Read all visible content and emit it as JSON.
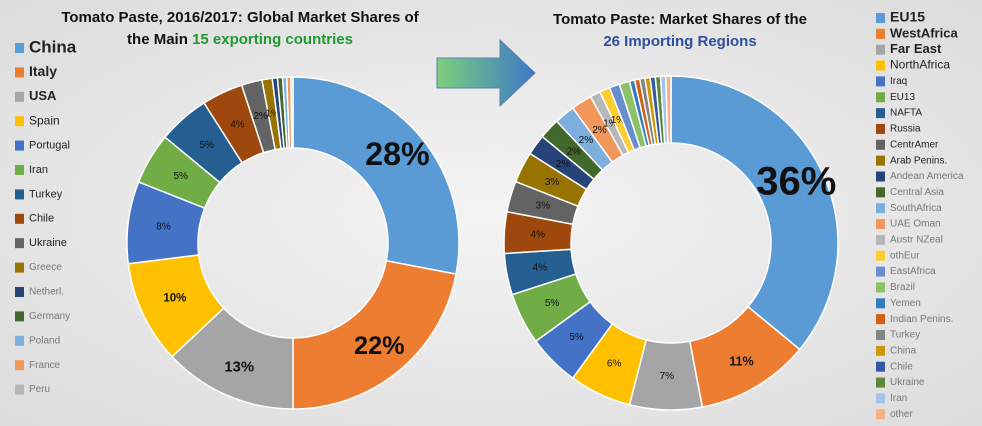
{
  "chart_data": [
    {
      "type": "donut",
      "title": [
        "Tomato Paste, 2016/2017: Global Market Shares of",
        "the Main",
        "15 exporting countries"
      ],
      "categories": [
        "China",
        "Italy",
        "USA",
        "Spain",
        "Portugal",
        "Iran",
        "Turkey",
        "Chile",
        "Ukraine",
        "Greece",
        "Netherl.",
        "Germany",
        "Poland",
        "France",
        "Peru"
      ],
      "values": [
        28,
        22,
        13,
        10,
        8,
        5,
        5,
        4,
        2,
        1,
        0.5,
        0.5,
        0.4,
        0.4,
        0.2
      ],
      "value_labels": [
        "28%",
        "22%",
        "13%",
        "10%",
        "8%",
        "5%",
        "5%",
        "4%",
        "2%",
        "1%",
        null,
        null,
        null,
        null,
        null
      ],
      "colors": [
        "#5b9bd5",
        "#ed7d31",
        "#a5a5a5",
        "#ffc000",
        "#4472c4",
        "#70ad47",
        "#255e91",
        "#9e480e",
        "#636363",
        "#997300",
        "#264478",
        "#43682b",
        "#7cafdd",
        "#f1975a",
        "#b7b7b7"
      ]
    },
    {
      "type": "donut",
      "title": [
        "Tomato Paste: Market Shares of the",
        "",
        "26 Importing Regions"
      ],
      "categories": [
        "EU15",
        "WestAfrica",
        "Far East",
        "NorthAfrica",
        "Iraq",
        "EU13",
        "NAFTA",
        "Russia",
        "CentrAmer",
        "Arab Penins.",
        "Andean America",
        "Central Asia",
        "SouthAfrica",
        "UAE Oman",
        "Austr NZeal",
        "othEur",
        "EastAfrica",
        "Brazil",
        "Yemen",
        "Indian Penins.",
        "Turkey",
        "China",
        "Chile",
        "Ukraine",
        "Iran",
        "other"
      ],
      "values": [
        36,
        11,
        7,
        6,
        5,
        5,
        4,
        4,
        3,
        3,
        2,
        2,
        2,
        2,
        1,
        1,
        1,
        1,
        0.5,
        0.5,
        0.5,
        0.5,
        0.5,
        0.5,
        0.5,
        0.5
      ],
      "value_labels": [
        "36%",
        "11%",
        "7%",
        "6%",
        "5%",
        "5%",
        "4%",
        "4%",
        "3%",
        "3%",
        "2%",
        "2%",
        "2%",
        "2%",
        "1%",
        "1%",
        null,
        null,
        null,
        null,
        null,
        null,
        null,
        null,
        null,
        null
      ],
      "colors": [
        "#5b9bd5",
        "#ed7d31",
        "#a5a5a5",
        "#ffc000",
        "#4472c4",
        "#70ad47",
        "#255e91",
        "#9e480e",
        "#636363",
        "#997300",
        "#264478",
        "#43682b",
        "#7cafdd",
        "#f1975a",
        "#b7b7b7",
        "#ffcd33",
        "#698ed0",
        "#8cc168",
        "#327dc2",
        "#d26012",
        "#848484",
        "#cc9a00",
        "#335aa1",
        "#5a8a39",
        "#a3c4e8",
        "#f4b183"
      ]
    }
  ]
}
